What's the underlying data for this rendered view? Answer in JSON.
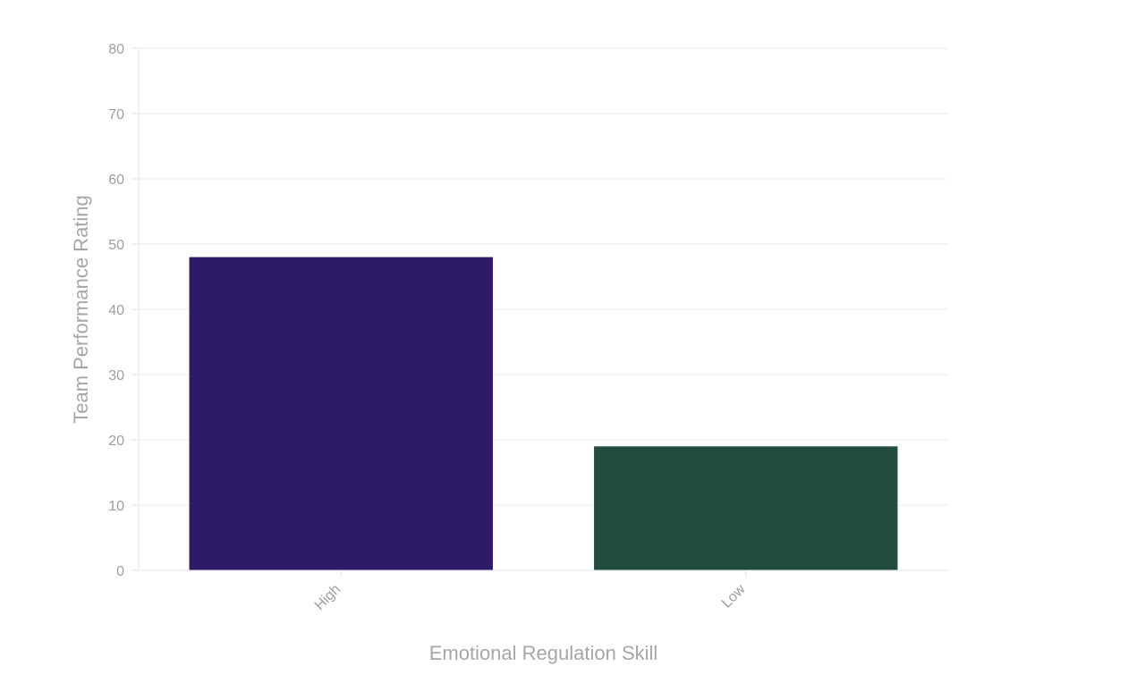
{
  "chart_data": {
    "type": "bar",
    "categories": [
      "High",
      "Low"
    ],
    "values": [
      48,
      19
    ],
    "bar_colors": [
      "#2e1b68",
      "#224d3e"
    ],
    "xlabel": "Emotional Regulation Skill",
    "ylabel": "Team Performance Rating",
    "ylim": [
      0,
      80
    ],
    "yticks": [
      0,
      10,
      20,
      30,
      40,
      50,
      60,
      70,
      80
    ],
    "grid": true,
    "legend": false
  }
}
